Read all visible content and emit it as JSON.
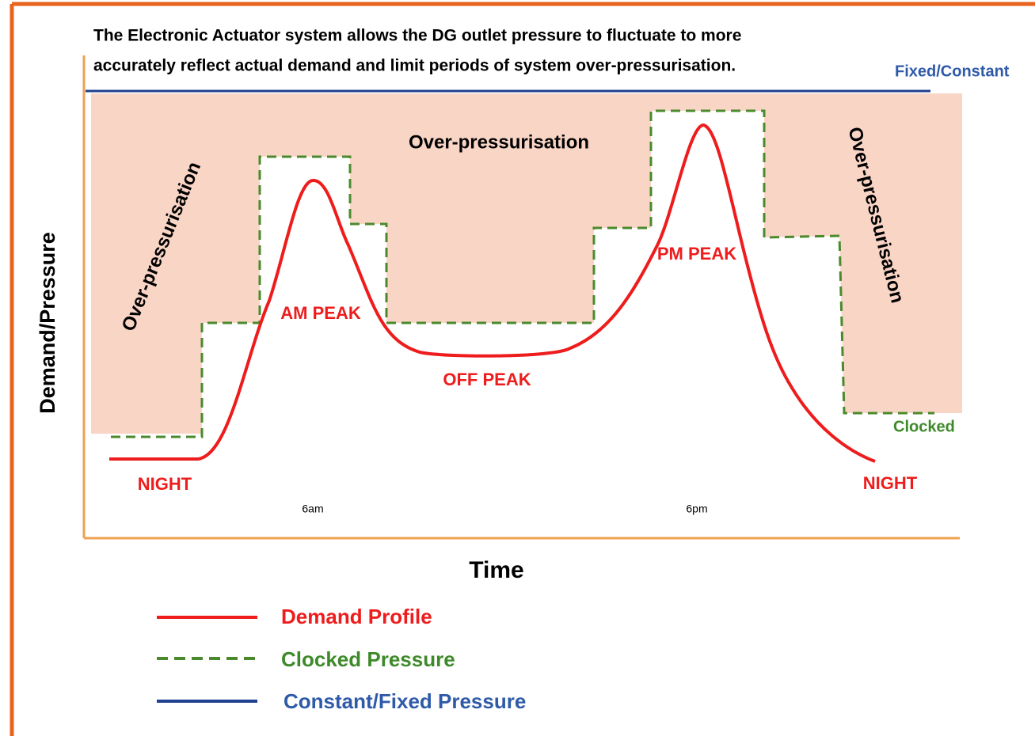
{
  "title": {
    "lines": [
      "The Electronic Actuator system allows the DG outlet pressure to fluctuate to more",
      "accurately reflect actual demand and limit periods of system over-pressurisation."
    ]
  },
  "fixed_label": "Fixed/Constant",
  "clocked_label": "Clocked",
  "regions": [
    "Over-pressurisation",
    "Over-pressurisation",
    "Over-pressurisation"
  ],
  "periods": [
    "NIGHT",
    "AM PEAK",
    "OFF PEAK",
    "PM PEAK",
    "NIGHT"
  ],
  "times": [
    "6am",
    "6pm"
  ],
  "y_axis_label": "Demand/Pressure",
  "x_axis_label": "Time",
  "legend": [
    "Demand Profile",
    "Clocked Pressure",
    "Constant/Fixed Pressure"
  ]
}
